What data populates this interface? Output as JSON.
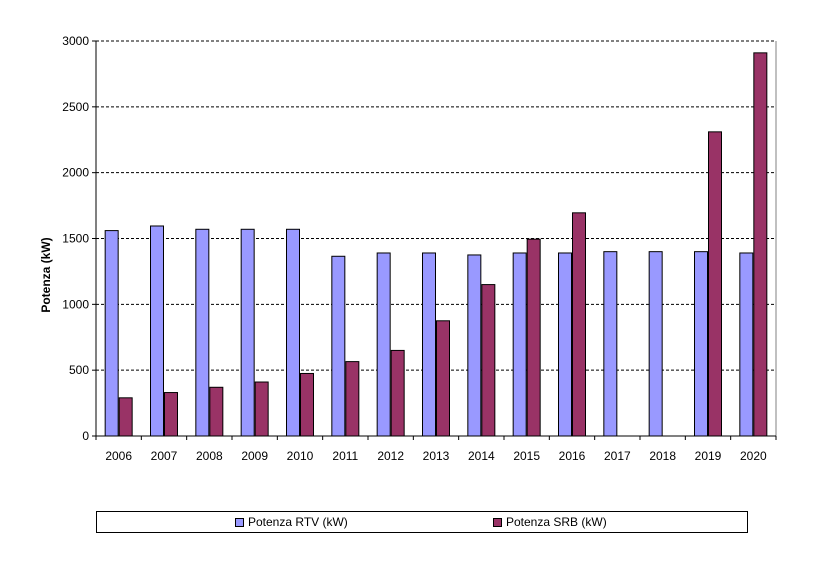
{
  "chart_data": {
    "type": "bar",
    "title": "",
    "xlabel": "",
    "ylabel": "Potenza (kW)",
    "ylim": [
      0,
      3000
    ],
    "yticks": [
      0,
      500,
      1000,
      1500,
      2000,
      2500,
      3000
    ],
    "grid": true,
    "legend_position": "bottom",
    "categories": [
      "2006",
      "2007",
      "2008",
      "2009",
      "2010",
      "2011",
      "2012",
      "2013",
      "2014",
      "2015",
      "2016",
      "2017",
      "2018",
      "2019",
      "2020"
    ],
    "series": [
      {
        "name": "Potenza RTV (kW)",
        "color": "#9999ff",
        "values": [
          1560,
          1595,
          1570,
          1570,
          1570,
          1365,
          1390,
          1390,
          1375,
          1390,
          1390,
          1400,
          1400,
          1400,
          1390
        ]
      },
      {
        "name": "Potenza SRB (kW)",
        "color": "#993366",
        "values": [
          290,
          330,
          370,
          410,
          475,
          565,
          650,
          875,
          1150,
          1495,
          1695,
          0,
          0,
          2310,
          2910
        ]
      }
    ]
  }
}
